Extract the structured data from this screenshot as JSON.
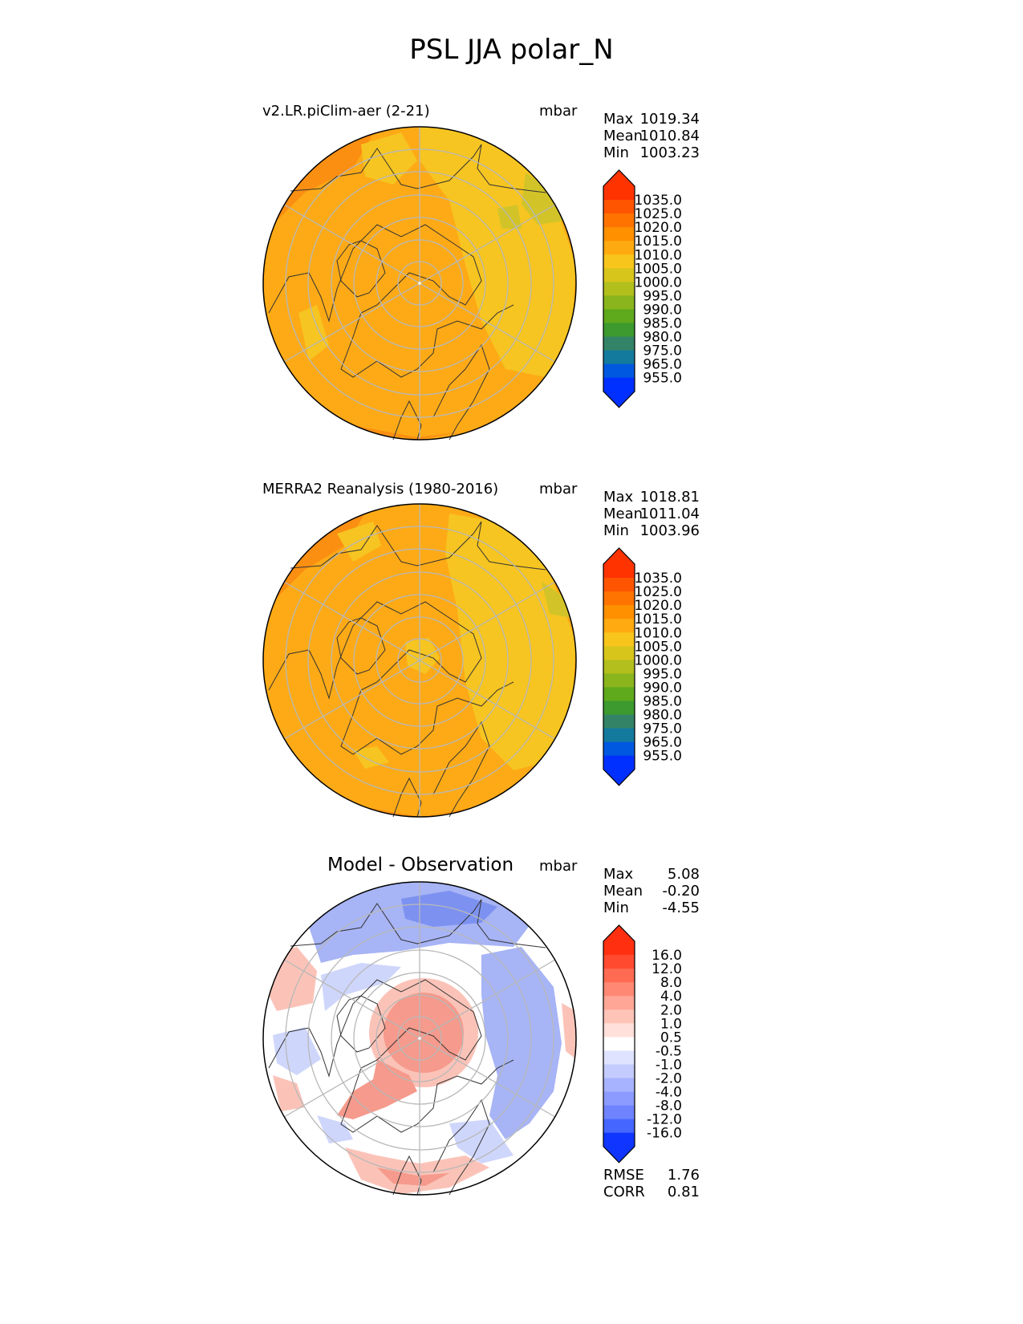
{
  "title": "PSL JJA polar_N",
  "panels": [
    {
      "label": "v2.LR.piClim-aer (2-21)",
      "units": "mbar",
      "stats": [
        {
          "name": "Max",
          "value": "1019.34"
        },
        {
          "name": "Mean",
          "value": "1010.84"
        },
        {
          "name": "Min",
          "value": "1003.23"
        }
      ]
    },
    {
      "label": "MERRA2 Reanalysis (1980-2016)",
      "units": "mbar",
      "stats": [
        {
          "name": "Max",
          "value": "1018.81"
        },
        {
          "name": "Mean",
          "value": "1011.04"
        },
        {
          "name": "Min",
          "value": "1003.96"
        }
      ]
    },
    {
      "label": "Model - Observation",
      "units": "mbar",
      "stats": [
        {
          "name": "Max",
          "value": "5.08"
        },
        {
          "name": "Mean",
          "value": "-0.20"
        },
        {
          "name": "Min",
          "value": "-4.55"
        }
      ],
      "metrics": [
        {
          "name": "RMSE",
          "value": "1.76"
        },
        {
          "name": "CORR",
          "value": "0.81"
        }
      ]
    }
  ],
  "colorbars": {
    "field": {
      "ticks": [
        "1035.0",
        "1025.0",
        "1020.0",
        "1015.0",
        "1010.0",
        "1005.0",
        "1000.0",
        "995.0",
        "990.0",
        "985.0",
        "980.0",
        "975.0",
        "965.0",
        "955.0"
      ],
      "colors": [
        "#ff3300",
        "#ff5500",
        "#ff7400",
        "#ff9000",
        "#ffaa10",
        "#f8c51c",
        "#d8c51c",
        "#b2bf1c",
        "#8ab51c",
        "#5ea91c",
        "#3c9a2e",
        "#338467",
        "#137a9e",
        "#0058e0",
        "#0030ff"
      ],
      "over_color": "#ff3300",
      "under_color": "#0030ff"
    },
    "diff": {
      "ticks": [
        "16.0",
        "12.0",
        "8.0",
        "4.0",
        "2.0",
        "1.0",
        "0.5",
        "-0.5",
        "-1.0",
        "-2.0",
        "-4.0",
        "-8.0",
        "-12.0",
        "-16.0"
      ],
      "colors": [
        "#ff2f0f",
        "#ff4a30",
        "#ff6a52",
        "#ff8874",
        "#ffa696",
        "#ffc4b8",
        "#ffe0da",
        "#ffffff",
        "#dfe3ff",
        "#c3cbff",
        "#a7b3ff",
        "#8b9bff",
        "#6f83ff",
        "#4566ff",
        "#0f35ff"
      ],
      "over_color": "#ff2f0f",
      "under_color": "#0f35ff"
    }
  },
  "map_colors": {
    "field_base": "#fdaa16",
    "field_light": "#f6c521",
    "field_dark": "#fb8f12",
    "field_green": "#d2c428",
    "diff_red": "#f59a8c",
    "diff_red_light": "#fbc3b8",
    "diff_blue": "#a7b4f5",
    "diff_blue_light": "#cfd6fb",
    "diff_blue_dark": "#7d92f0"
  }
}
